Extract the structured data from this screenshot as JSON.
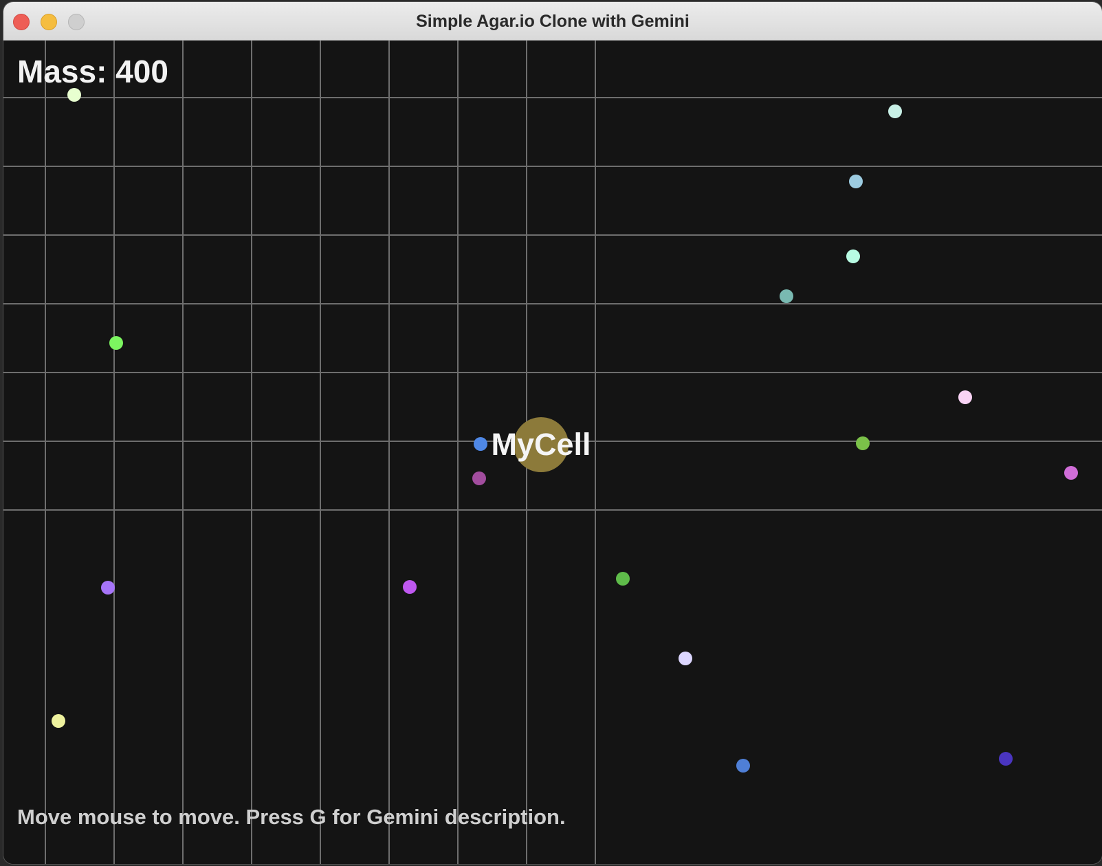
{
  "window": {
    "title": "Simple Agar.io Clone with Gemini"
  },
  "hud": {
    "mass_label": "Mass: 400",
    "help_text": "Move mouse to move. Press G for Gemini description."
  },
  "player": {
    "name": "MyCell",
    "color": "#8c7a3a"
  },
  "grid": {
    "color": "#6e6e6e"
  },
  "food_colors": [
    "#e8ffd0",
    "#c8f0e6",
    "#9ccbe0",
    "#b8fbe3",
    "#79b9b1",
    "#7cf560",
    "#f9d3f5",
    "#4f88e6",
    "#7bc149",
    "#a24d9e",
    "#d06dd8",
    "#a674f8",
    "#bf58f0",
    "#5fbc4a",
    "#dcd6ff",
    "#eef29e",
    "#4f7fd6",
    "#4a35c0"
  ]
}
